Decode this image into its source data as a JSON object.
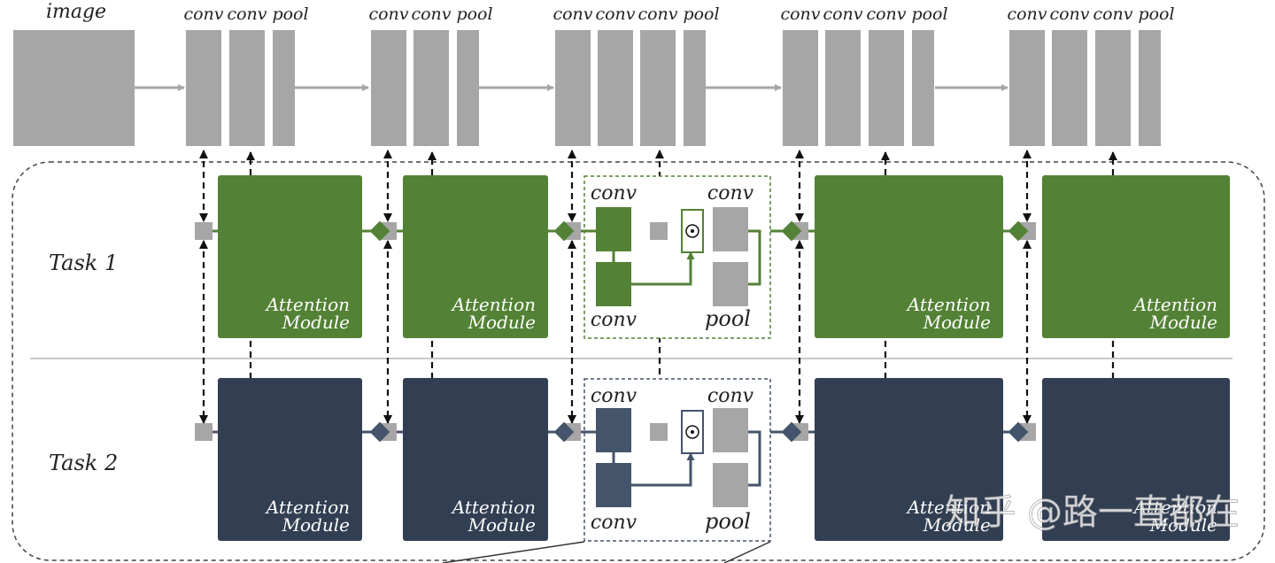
{
  "labels": {
    "image": "image",
    "conv": "conv",
    "pool": "pool",
    "attention_line1": "Attention",
    "attention_line2": "Module"
  },
  "tasks": [
    {
      "label": "Task 1",
      "color": "#538135"
    },
    {
      "label": "Task 2",
      "color": "#323e52"
    }
  ],
  "shared_network": {
    "color": "#a6a6a6",
    "stages": [
      {
        "blocks": [
          "conv",
          "conv",
          "pool"
        ]
      },
      {
        "blocks": [
          "conv",
          "conv",
          "pool"
        ]
      },
      {
        "blocks": [
          "conv",
          "conv",
          "conv",
          "pool"
        ]
      },
      {
        "blocks": [
          "conv",
          "conv",
          "conv",
          "pool"
        ]
      },
      {
        "blocks": [
          "conv",
          "conv",
          "conv",
          "pool"
        ]
      }
    ]
  },
  "colors": {
    "task2_light": "#44546a",
    "dashed_border": "#555555"
  },
  "watermark": "知乎 @路一直都在"
}
